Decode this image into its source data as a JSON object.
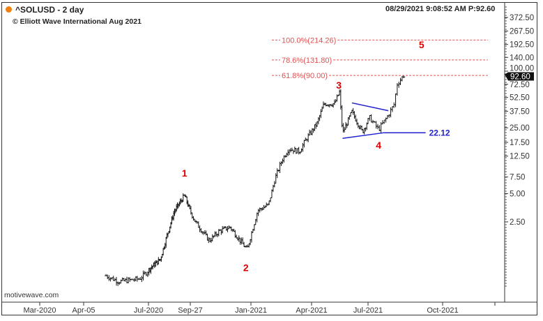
{
  "header": {
    "symbol": "^SOLUSD - 2 day",
    "copyright": "© Elliott Wave International Aug 2021",
    "timestamp": "08/29/2021 9:08:52 AM  P:92.60",
    "watermark": "motivewave.com"
  },
  "colors": {
    "status_dot": "#f08010",
    "fib": "#e05050",
    "wave": "#dd0000",
    "triangle": "#2222cc",
    "bars": "#111111"
  },
  "chart_data": {
    "type": "ohlc",
    "title": "^SOLUSD - 2 day",
    "yscale": "log",
    "ylim": [
      0.45,
      520
    ],
    "y_ticks": [
      "372.50",
      "267.50",
      "192.50",
      "140.00",
      "100.00",
      "72.50",
      "52.50",
      "37.50",
      "25.00",
      "17.50",
      "12.50",
      "7.50",
      "5.00",
      "2.50"
    ],
    "x_ticks": [
      {
        "label": "Mar-2020",
        "date": "2020-03-01"
      },
      {
        "label": "Apr-05",
        "date": "2020-04-05"
      },
      {
        "label": "Jul-2020",
        "date": "2020-07-01"
      },
      {
        "label": "Sep-27",
        "date": "2020-09-27"
      },
      {
        "label": "Jan-2021",
        "date": "2021-01-01"
      },
      {
        "label": "Apr-2021",
        "date": "2021-04-01"
      },
      {
        "label": "Jul-2021",
        "date": "2021-07-01"
      },
      {
        "label": "Oct-2021",
        "date": "2021-10-01"
      }
    ],
    "price_path": [
      [
        "2020-05-05",
        0.67
      ],
      [
        "2020-05-22",
        0.58
      ],
      [
        "2020-06-19",
        0.62
      ],
      [
        "2020-07-04",
        0.8
      ],
      [
        "2020-07-26",
        1.0
      ],
      [
        "2020-08-10",
        1.86
      ],
      [
        "2020-08-24",
        3.2
      ],
      [
        "2020-09-15",
        4.8
      ],
      [
        "2020-10-05",
        2.5
      ],
      [
        "2020-10-27",
        1.58
      ],
      [
        "2020-11-12",
        2.0
      ],
      [
        "2020-11-29",
        2.2
      ],
      [
        "2020-12-26",
        1.26
      ],
      [
        "2021-01-11",
        3.3
      ],
      [
        "2021-01-27",
        3.8
      ],
      [
        "2021-02-06",
        7.3
      ],
      [
        "2021-02-16",
        11.3
      ],
      [
        "2021-02-26",
        15.0
      ],
      [
        "2021-03-14",
        14.0
      ],
      [
        "2021-03-24",
        19.0
      ],
      [
        "2021-04-10",
        28.0
      ],
      [
        "2021-04-21",
        45.0
      ],
      [
        "2021-05-08",
        45.0
      ],
      [
        "2021-05-16",
        60.0
      ],
      [
        "2021-05-21",
        22.0
      ],
      [
        "2021-06-05",
        37.0
      ],
      [
        "2021-06-22",
        22.5
      ],
      [
        "2021-07-03",
        32.0
      ],
      [
        "2021-07-14",
        24.0
      ],
      [
        "2021-07-24",
        32.0
      ],
      [
        "2021-08-02",
        44.0
      ],
      [
        "2021-08-06",
        73.0
      ],
      [
        "2021-08-13",
        88.0
      ],
      [
        "2021-08-15",
        92.6
      ]
    ],
    "last_price": "92.60",
    "fib_levels": [
      {
        "label": "100.0%(214.26)",
        "value": 214.26
      },
      {
        "label": "78.6%(131.80)",
        "value": 131.8
      },
      {
        "label": "61.8%(90.00)",
        "value": 90.0
      }
    ],
    "wave_labels": [
      {
        "label": "1",
        "date": "2020-09-15",
        "value": 7.6
      },
      {
        "label": "2",
        "date": "2020-12-24",
        "value": 0.75
      },
      {
        "label": "3",
        "date": "2021-05-15",
        "value": 82
      },
      {
        "label": "4",
        "date": "2021-07-14",
        "value": 15
      },
      {
        "label": "5",
        "date": "2021-09-05",
        "value": 175
      }
    ],
    "triangle": {
      "upper": [
        [
          "2021-06-05",
          46
        ],
        [
          "2021-07-26",
          38
        ]
      ],
      "lower": [
        [
          "2021-05-21",
          19.3
        ],
        [
          "2021-07-20",
          22.12
        ]
      ]
    },
    "support": {
      "label": "22.12",
      "value": 22.12,
      "from": "2021-07-20",
      "to": "2021-09-10"
    }
  }
}
